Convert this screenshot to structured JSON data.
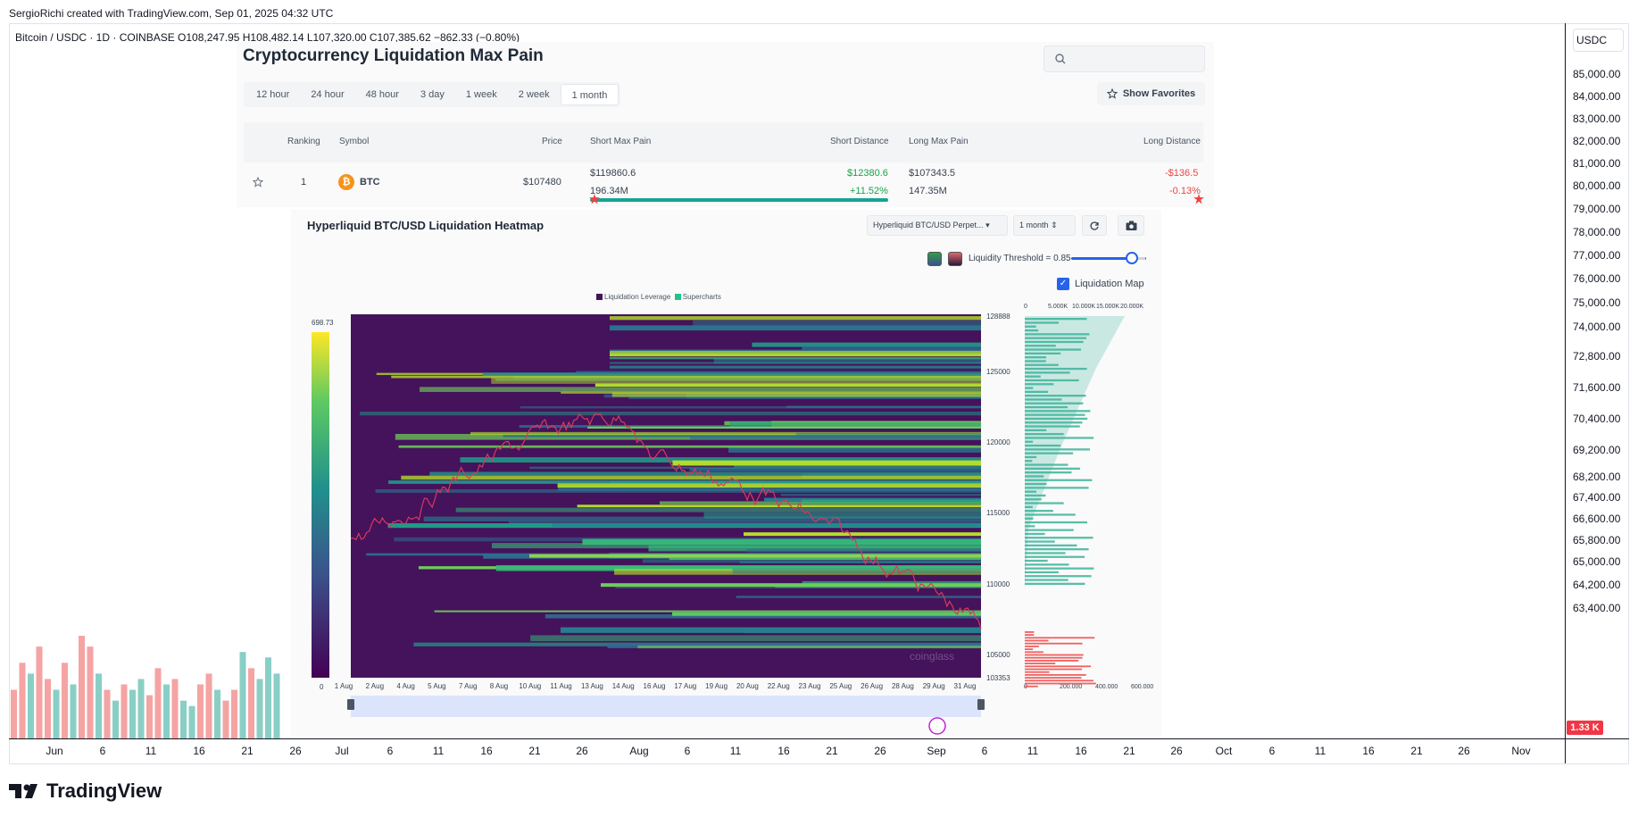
{
  "tv": {
    "credit": "SergioRichi created with TradingView.com, Sep 01, 2025 04:32 UTC",
    "symbol_line": "Bitcoin / USDC · 1D · COINBASE  O108,247.95  H108,482.14  L107,320.00  C107,385.62  −862.33 (−0.80%)",
    "currency": "USDC",
    "volume_badge": "1.33 K",
    "logo_text": "TradingView",
    "price_ticks": [
      "85,000.00",
      "84,000.00",
      "83,000.00",
      "82,000.00",
      "81,000.00",
      "80,000.00",
      "79,000.00",
      "78,000.00",
      "77,000.00",
      "76,000.00",
      "75,000.00",
      "74,000.00",
      "72,800.00",
      "71,600.00",
      "70,400.00",
      "69,200.00",
      "68,200.00",
      "67,400.00",
      "66,600.00",
      "65,800.00",
      "65,000.00",
      "64,200.00",
      "63,400.00"
    ],
    "time_ticks": [
      "Jun",
      "6",
      "11",
      "16",
      "21",
      "26",
      "Jul",
      "6",
      "11",
      "16",
      "21",
      "26",
      "Aug",
      "6",
      "11",
      "16",
      "21",
      "26",
      "Sep",
      "6",
      "11",
      "16",
      "21",
      "26",
      "Oct",
      "6",
      "11",
      "16",
      "21",
      "26",
      "Nov"
    ],
    "colors": {
      "up": "#89cfc5",
      "down": "#f5a3a3"
    },
    "volume_bars": {
      "values": [
        0.45,
        0.7,
        0.6,
        0.85,
        0.55,
        0.45,
        0.7,
        0.5,
        0.95,
        0.85,
        0.6,
        0.45,
        0.35,
        0.5,
        0.45,
        0.55,
        0.4,
        0.65,
        0.5,
        0.55,
        0.35,
        0.3,
        0.5,
        0.6,
        0.45,
        0.35,
        0.45,
        0.8,
        0.65,
        0.55,
        0.75,
        0.6
      ],
      "dir": [
        "d",
        "d",
        "u",
        "d",
        "d",
        "u",
        "d",
        "u",
        "d",
        "d",
        "u",
        "d",
        "u",
        "d",
        "u",
        "u",
        "d",
        "d",
        "u",
        "d",
        "u",
        "u",
        "d",
        "d",
        "u",
        "d",
        "d",
        "u",
        "d",
        "u",
        "u",
        "u"
      ]
    }
  },
  "maxpain": {
    "title": "Cryptocurrency Liquidation Max Pain",
    "search_placeholder": "",
    "tabs": [
      "12 hour",
      "24 hour",
      "48 hour",
      "3 day",
      "1 week",
      "2 week",
      "1 month"
    ],
    "active_tab": "1 month",
    "favorites_label": "Show Favorites",
    "headers": {
      "ranking": "Ranking",
      "symbol": "Symbol",
      "price": "Price",
      "short_max_pain": "Short Max Pain",
      "short_distance": "Short Distance",
      "long_max_pain": "Long Max Pain",
      "long_distance": "Long Distance"
    },
    "row": {
      "rank": "1",
      "symbol": "BTC",
      "price": "$107480",
      "short_max_pain": "$119860.6",
      "short_value": "196.34M",
      "short_distance": "$12380.6",
      "short_distance_pct": "+11.52%",
      "long_max_pain": "$107343.5",
      "long_value": "147.35M",
      "long_distance": "-$136.5",
      "long_distance_pct": "-0.13%"
    }
  },
  "heatmap": {
    "title": "Hyperliquid BTC/USD Liquidation Heatmap",
    "exchange_select": "Hyperliquid BTC/USD Perpet...",
    "period_select": "1 month",
    "threshold_label": "Liquidity Threshold = 0.85",
    "threshold_value": 0.85,
    "liquidation_map_label": "Liquidation Map",
    "legend": [
      "Liquidation Leverage",
      "Supercharts"
    ],
    "colorbar_max": "698.73",
    "colorbar_min": "0",
    "watermark": "coinglass",
    "y_ticks": [
      "128888",
      "125000",
      "120000",
      "115000",
      "110000",
      "105000",
      "103353"
    ],
    "x_ticks": [
      "1 Aug",
      "2 Aug",
      "4 Aug",
      "5 Aug",
      "7 Aug",
      "8 Aug",
      "10 Aug",
      "11 Aug",
      "13 Aug",
      "14 Aug",
      "16 Aug",
      "17 Aug",
      "19 Aug",
      "20 Aug",
      "22 Aug",
      "23 Aug",
      "25 Aug",
      "26 Aug",
      "28 Aug",
      "29 Aug",
      "31 Aug"
    ],
    "liqmap_top_ticks": [
      "0",
      "5.000K",
      "10.000K",
      "15.000K",
      "20.000K"
    ],
    "liqmap_bottom_ticks": [
      "0",
      "200.000",
      "400.000",
      "600.000"
    ],
    "colors": {
      "bg": "#45125c",
      "band": "#2a8c8a",
      "hot": "#8fd14f",
      "price": "#d63a5a",
      "short": "#3bb39a",
      "long": "#ef4444"
    }
  }
}
